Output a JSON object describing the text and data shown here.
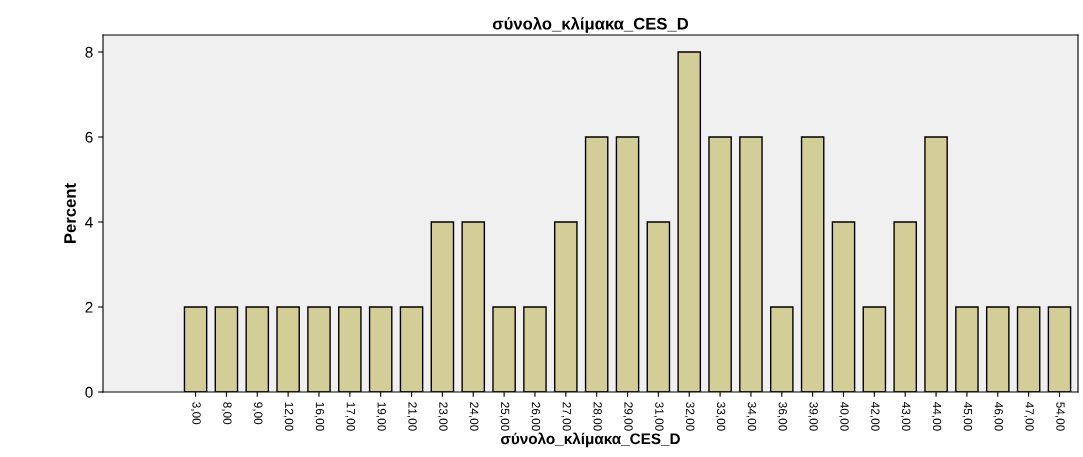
{
  "chart_data": {
    "type": "bar",
    "title": "σύνολο_κλίμακα_CES_D",
    "xlabel": "σύνολο_κλίμακα_CES_D",
    "ylabel": "Percent",
    "categories": [
      "3,00",
      "8,00",
      "9,00",
      "12,00",
      "16,00",
      "17,00",
      "19,00",
      "21,00",
      "23,00",
      "24,00",
      "25,00",
      "26,00",
      "27,00",
      "28,00",
      "29,00",
      "31,00",
      "32,00",
      "33,00",
      "34,00",
      "36,00",
      "39,00",
      "40,00",
      "42,00",
      "43,00",
      "44,00",
      "45,00",
      "46,00",
      "47,00",
      "54,00"
    ],
    "values": [
      2,
      2,
      2,
      2,
      2,
      2,
      2,
      2,
      4,
      4,
      2,
      2,
      4,
      6,
      6,
      4,
      8,
      6,
      6,
      2,
      6,
      4,
      2,
      4,
      6,
      2,
      2,
      2,
      2
    ],
    "color": "#d3ce97",
    "ylim": [
      0,
      8.4
    ],
    "yticks": [
      0,
      2,
      4,
      6,
      8
    ],
    "grid": false,
    "legend": false
  }
}
